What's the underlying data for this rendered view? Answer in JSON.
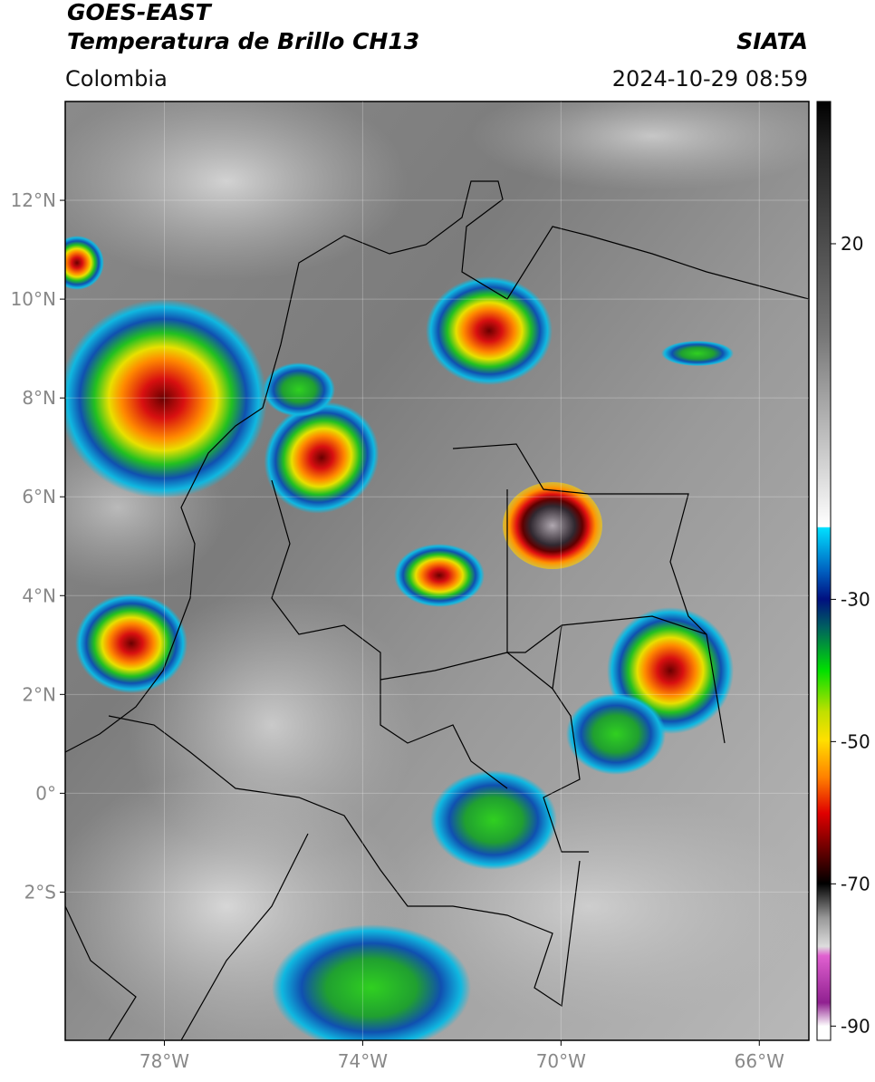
{
  "header": {
    "title": "GOES-EAST",
    "subtitle": "Temperatura de Brillo CH13",
    "region": "Colombia",
    "source": "SIATA",
    "datetime": "2024-10-29 08:59"
  },
  "map": {
    "latlim": [
      -5,
      14
    ],
    "lonlim": [
      -80,
      -65
    ],
    "lat_ticks": [
      {
        "value": 12,
        "label": "12°N"
      },
      {
        "value": 10,
        "label": "10°N"
      },
      {
        "value": 8,
        "label": "8°N"
      },
      {
        "value": 6,
        "label": "6°N"
      },
      {
        "value": 4,
        "label": "4°N"
      },
      {
        "value": 2,
        "label": "2°N"
      },
      {
        "value": 0,
        "label": "0°"
      },
      {
        "value": -2,
        "label": "2°S"
      }
    ],
    "lon_ticks": [
      {
        "value": -78,
        "label": "78°W"
      },
      {
        "value": -74,
        "label": "74°W"
      },
      {
        "value": -70,
        "label": "70°W"
      },
      {
        "value": -66,
        "label": "66°W"
      }
    ],
    "grid": true
  },
  "colorbar": {
    "lim": [
      40,
      -92
    ],
    "ticks": [
      20,
      -30,
      -50,
      -70,
      -90
    ]
  }
}
